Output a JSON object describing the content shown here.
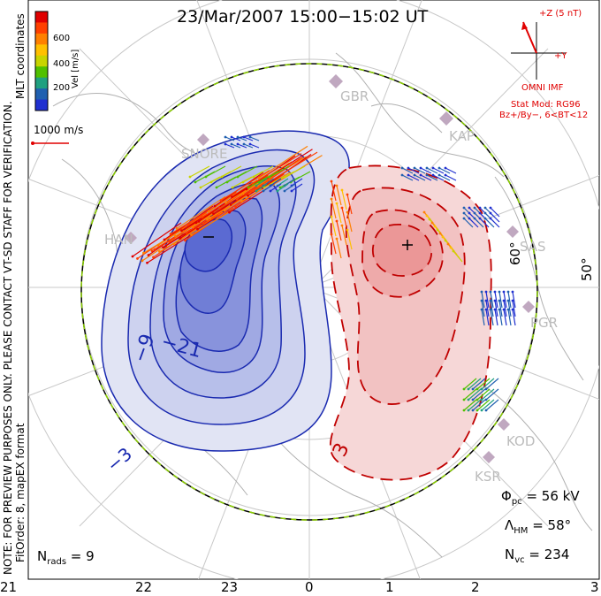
{
  "title": "23/Mar/2007 15:00−15:02 UT",
  "x_ticks": [
    "21",
    "22",
    "23",
    "0",
    "1",
    "2",
    "3"
  ],
  "side_note_1": "NOTE: FOR PREVIEW PURPOSES ONLY. PLEASE CONTACT VT-SD STAFF FOR VERIFICATION.",
  "side_note_2": "FitOrder: 8, mapEX format",
  "side_note_3": "MLT coordinates",
  "colorbar": {
    "label": "Vel [m/s]",
    "ticks": [
      "600",
      "400",
      "200"
    ],
    "colors": [
      "#e00000",
      "#ff4000",
      "#ff8000",
      "#ffc000",
      "#c8d400",
      "#50c000",
      "#20a080",
      "#2060b0",
      "#2030d0"
    ]
  },
  "vector_scale": "1000 m/s",
  "imf": {
    "z_label": "+Z (5 nT)",
    "y_label": "+Y",
    "source": "OMNI IMF",
    "model": "Stat Mod: RG96",
    "condition": "Bz+/By−, 6<BT<12"
  },
  "latitude_labels": [
    "60°",
    "50°"
  ],
  "sites": [
    "GBR",
    "KAP",
    "SAS",
    "PGR",
    "KOD",
    "KSR",
    "SNORE",
    "HAN"
  ],
  "contour_labels": [
    "−3",
    "−9",
    "−21",
    "3",
    "−",
    "+"
  ],
  "stats": {
    "phi_pc": "56 kV",
    "lambda_hm": "58°",
    "n_vc": "234",
    "n_rads": "9"
  },
  "colors": {
    "negative_cell": "#3a4fd8",
    "positive_cell": "#e04040",
    "boundary_green": "#8cd000"
  }
}
